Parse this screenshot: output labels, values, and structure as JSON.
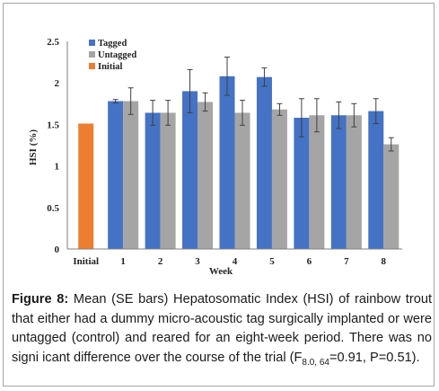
{
  "chart_data": {
    "type": "bar",
    "xlabel": "Week",
    "ylabel": "HSI (%)",
    "ylim": [
      0,
      2.5
    ],
    "yticks": [
      "0",
      "0.5",
      "1",
      "1.5",
      "2",
      "2.5"
    ],
    "grid": false,
    "legend_position": "top-left",
    "categories": [
      "Initial",
      "1",
      "2",
      "3",
      "4",
      "5",
      "6",
      "7",
      "8"
    ],
    "series": [
      {
        "name": "Tagged",
        "color": "#4472c4",
        "values": [
          null,
          1.78,
          1.64,
          1.9,
          2.08,
          2.07,
          1.58,
          1.61,
          1.66
        ],
        "se": [
          null,
          0.02,
          0.15,
          0.26,
          0.23,
          0.11,
          0.23,
          0.16,
          0.15
        ]
      },
      {
        "name": "Untagged",
        "color": "#a5a5a5",
        "values": [
          null,
          1.78,
          1.64,
          1.77,
          1.64,
          1.68,
          1.61,
          1.61,
          1.26
        ],
        "se": [
          null,
          0.16,
          0.15,
          0.11,
          0.15,
          0.07,
          0.2,
          0.14,
          0.08
        ]
      },
      {
        "name": "Initial",
        "color": "#ed7d31",
        "values": [
          1.51,
          null,
          null,
          null,
          null,
          null,
          null,
          null,
          null
        ],
        "se": [
          null,
          null,
          null,
          null,
          null,
          null,
          null,
          null,
          null
        ]
      }
    ]
  },
  "caption": {
    "label": "Figure 8:",
    "text_main": " Mean (SE bars) Hepatosomatic Index (HSI) of rainbow trout that either had a dummy micro-acoustic tag surgically implanted or were untagged (control) and reared for an eight-week period. There was no signi icant difference over the course of the trial (F",
    "stat_subscript": "8.0, 64",
    "text_end": "=0.91, P=0.51)."
  }
}
